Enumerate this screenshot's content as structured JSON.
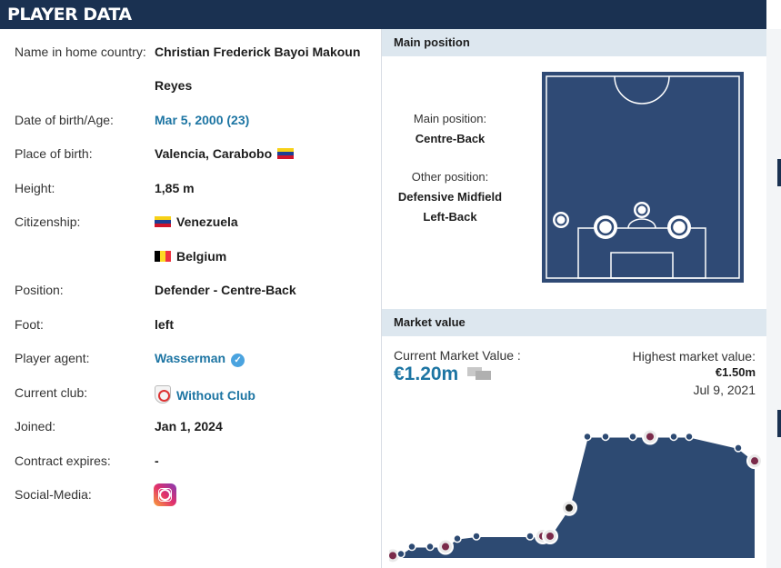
{
  "header": {
    "title": "PLAYER DATA"
  },
  "player": {
    "name_label": "Name in home country:",
    "name_line1": "Christian Frederick Bayoi Makoun",
    "name_line2": "Reyes",
    "dob_label": "Date of birth/Age:",
    "dob_value": "Mar 5, 2000 (23)",
    "pob_label": "Place of birth:",
    "pob_value": "Valencia, Carabobo",
    "height_label": "Height:",
    "height_value": "1,85 m",
    "citizenship_label": "Citizenship:",
    "citizenship_1": "Venezuela",
    "citizenship_2": "Belgium",
    "position_label": "Position:",
    "position_value": "Defender - Centre-Back",
    "foot_label": "Foot:",
    "foot_value": "left",
    "agent_label": "Player agent:",
    "agent_value": "Wasserman",
    "club_label": "Current club:",
    "club_value": "Without Club",
    "joined_label": "Joined:",
    "joined_value": "Jan 1, 2024",
    "contract_label": "Contract expires:",
    "contract_value": "-",
    "social_label": "Social-Media:"
  },
  "main_position": {
    "section_title": "Main position",
    "main_label": "Main position:",
    "main_value": "Centre-Back",
    "other_label": "Other position:",
    "other_values": [
      "Defensive Midfield",
      "Left-Back"
    ],
    "pitch_color": "#2f4a75",
    "markers": [
      {
        "name": "Left-Back",
        "type": "other"
      },
      {
        "name": "Centre-Back L",
        "type": "main"
      },
      {
        "name": "Defensive Midfield",
        "type": "other"
      },
      {
        "name": "Centre-Back R",
        "type": "main"
      }
    ]
  },
  "market_value": {
    "section_title": "Market value",
    "current_label": "Current Market Value :",
    "current_value": "€1.20m",
    "highest_label": "Highest market value:",
    "highest_value": "€1.50m",
    "highest_date": "Jul 9, 2021",
    "area_color": "#2d4a72",
    "points_value_m": [
      0.03,
      0.05,
      0.14,
      0.14,
      0.14,
      0.24,
      0.27,
      0.27,
      0.27,
      0.27,
      0.62,
      1.5,
      1.5,
      1.5,
      1.5,
      1.5,
      1.5,
      1.36,
      1.2
    ],
    "club_badges": [
      "club-badge",
      "club-badge",
      "juventus-badge",
      "club-badge",
      "inter-miami-badge",
      "club-badge",
      "club-badge"
    ]
  },
  "colors": {
    "brand_navy": "#1a3151",
    "link_blue": "#1d75a3",
    "section_bg": "#dde7ef"
  }
}
